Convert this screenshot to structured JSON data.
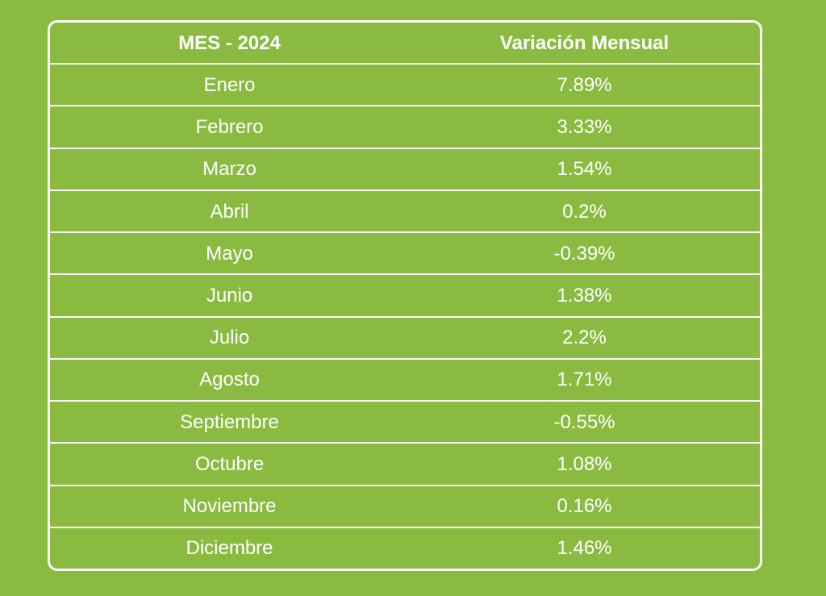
{
  "chart_data": {
    "type": "table",
    "columns": [
      "MES - 2024",
      "Variación Mensual"
    ],
    "rows": [
      [
        "Enero",
        "7.89%"
      ],
      [
        "Febrero",
        "3.33%"
      ],
      [
        "Marzo",
        "1.54%"
      ],
      [
        "Abril",
        "0.2%"
      ],
      [
        "Mayo",
        "-0.39%"
      ],
      [
        "Junio",
        "1.38%"
      ],
      [
        "Julio",
        "2.2%"
      ],
      [
        "Agosto",
        "1.71%"
      ],
      [
        "Septiembre",
        "-0.55%"
      ],
      [
        "Octubre",
        "1.08%"
      ],
      [
        "Noviembre",
        "0.16%"
      ],
      [
        "Diciembre",
        "1.46%"
      ]
    ],
    "colors": {
      "background": "#8abb40",
      "text": "#ffffff",
      "border": "#ffffff"
    }
  }
}
